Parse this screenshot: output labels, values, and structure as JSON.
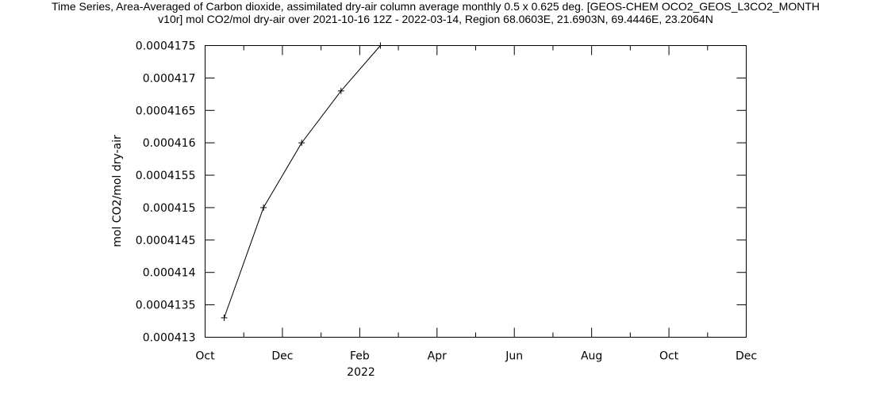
{
  "chart_data": {
    "type": "line",
    "title_line1": "Time Series, Area-Averaged of Carbon dioxide, assimilated dry-air column average monthly 0.5 x 0.625 deg. [GEOS-CHEM OCO2_GEOS_L3CO2_MONTH",
    "title_line2": "v10r] mol CO2/mol dry-air over 2021-10-16 12Z - 2022-03-14, Region 68.0603E, 21.6903N, 69.4446E, 23.2064N",
    "xlabel": "",
    "ylabel": "mol CO2/mol dry-air",
    "x_tick_labels": [
      "Oct",
      "Dec",
      "Feb",
      "Apr",
      "Jun",
      "Aug",
      "Oct",
      "Dec"
    ],
    "x_year_label": "2022",
    "x_range": [
      "2021-10-01",
      "2022-12-01"
    ],
    "y_tick_labels": [
      "0.000413",
      "0.0004135",
      "0.000414",
      "0.0004145",
      "0.000415",
      "0.0004155",
      "0.000416",
      "0.0004165",
      "0.000417",
      "0.0004175"
    ],
    "ylim": [
      0.000413,
      0.0004175
    ],
    "grid": false,
    "series": [
      {
        "x": [
          "2021-10-16",
          "2021-11-16",
          "2021-12-16",
          "2022-01-16",
          "2022-02-16"
        ],
        "values": [
          0.0004133,
          0.000415,
          0.000416,
          0.0004168,
          0.0004175
        ]
      }
    ]
  }
}
